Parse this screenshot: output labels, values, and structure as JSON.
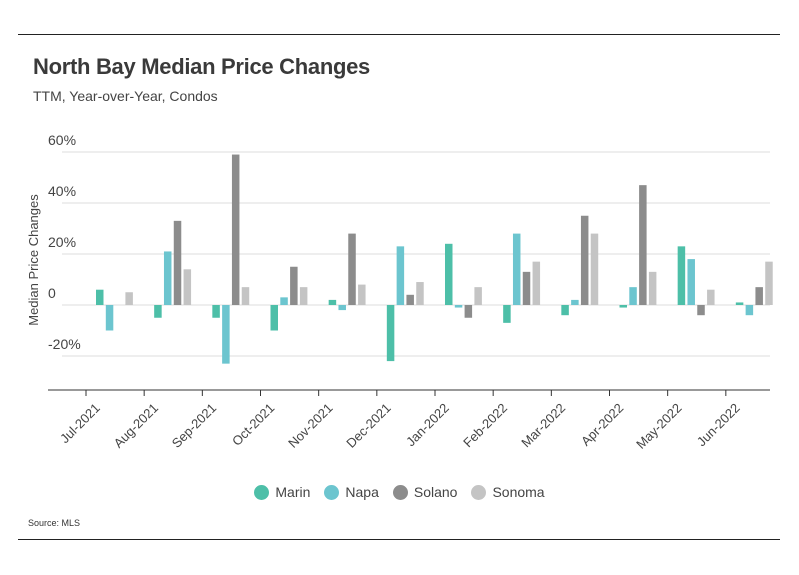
{
  "title": "North Bay Median Price Changes",
  "subtitle": "TTM, Year-over-Year, Condos",
  "source": "Source:  MLS",
  "chart_data": {
    "type": "bar",
    "title": "North Bay Median Price Changes",
    "subtitle": "TTM, Year-over-Year, Condos",
    "ylabel": "Median Price Changes",
    "xlabel": "",
    "ylim": [
      -35,
      60
    ],
    "yticks": [
      {
        "value": 60,
        "label": "60%"
      },
      {
        "value": 40,
        "label": "40%"
      },
      {
        "value": 20,
        "label": "20%"
      },
      {
        "value": 0,
        "label": "0"
      },
      {
        "value": -20,
        "label": "-20%"
      }
    ],
    "categories": [
      "Jul-2021",
      "Aug-2021",
      "Sep-2021",
      "Oct-2021",
      "Nov-2021",
      "Dec-2021",
      "Jan-2022",
      "Feb-2022",
      "Mar-2022",
      "Apr-2022",
      "May-2022",
      "Jun-2022"
    ],
    "series": [
      {
        "name": "Marin",
        "color": "#4dbfa8",
        "values": [
          6,
          -5,
          -5,
          -10,
          2,
          -22,
          24,
          -7,
          -4,
          -1,
          23,
          1
        ]
      },
      {
        "name": "Napa",
        "color": "#6cc5cf",
        "values": [
          -10,
          21,
          -23,
          3,
          -2,
          23,
          -1,
          28,
          2,
          7,
          18,
          -4
        ]
      },
      {
        "name": "Solano",
        "color": "#8c8c8c",
        "values": [
          0,
          33,
          59,
          15,
          28,
          4,
          -5,
          13,
          35,
          47,
          -4,
          7
        ]
      },
      {
        "name": "Sonoma",
        "color": "#c4c4c4",
        "values": [
          5,
          14,
          7,
          7,
          8,
          9,
          7,
          17,
          28,
          13,
          6,
          17
        ]
      }
    ],
    "grid": true,
    "legend": "bottom"
  }
}
